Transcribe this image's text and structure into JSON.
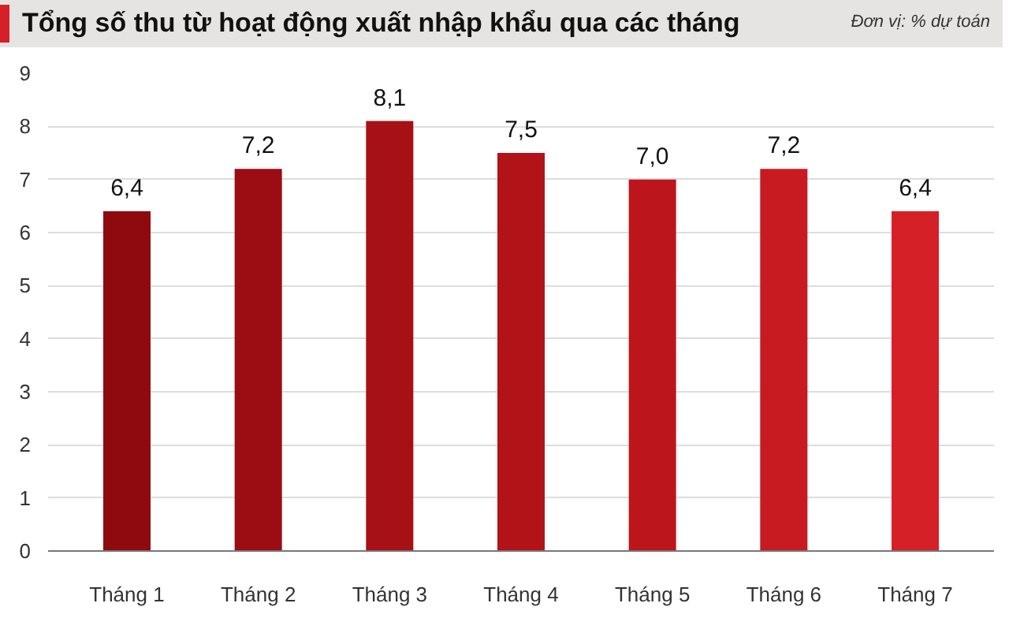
{
  "chart_data": {
    "type": "bar",
    "title": "Tổng số thu từ hoạt động xuất nhập khẩu qua các tháng",
    "subtitle": "Đơn vị: % dự toán",
    "categories": [
      "Tháng 1",
      "Tháng 2",
      "Tháng 3",
      "Tháng 4",
      "Tháng 5",
      "Tháng 6",
      "Tháng 7"
    ],
    "values": [
      6.4,
      7.2,
      8.1,
      7.5,
      7.0,
      7.2,
      6.4
    ],
    "value_labels": [
      "6,4",
      "7,2",
      "8,1",
      "7,5",
      "7,0",
      "7,2",
      "6,4"
    ],
    "colors": [
      "#8e0a0e",
      "#9b0d12",
      "#a71015",
      "#b11318",
      "#bc161c",
      "#c81a21",
      "#d62028"
    ],
    "ylim": [
      0,
      9
    ],
    "yticks": [
      0,
      1,
      2,
      3,
      4,
      5,
      6,
      7,
      8,
      9
    ],
    "grid": "y"
  }
}
